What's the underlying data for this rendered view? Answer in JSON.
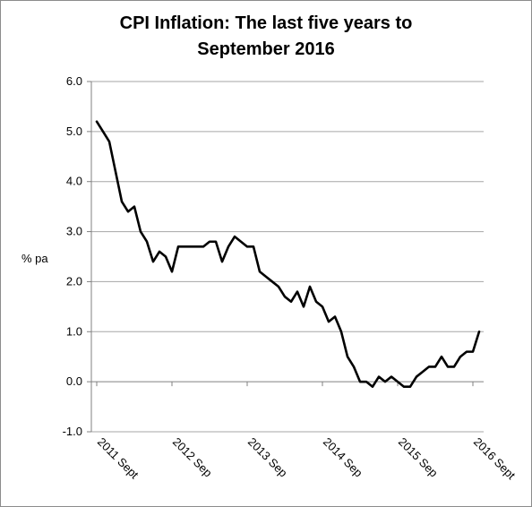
{
  "chart_data": {
    "type": "line",
    "title_lines": [
      "CPI Inflation: The last five years to",
      "September 2016"
    ],
    "ylabel": "% pa",
    "xlabel": "",
    "ylim": [
      -1.0,
      6.0
    ],
    "y_ticks": [
      "-1.0",
      "0.0",
      "1.0",
      "2.0",
      "3.0",
      "4.0",
      "5.0",
      "6.0"
    ],
    "y_tick_values": [
      -1,
      0,
      1,
      2,
      3,
      4,
      5,
      6
    ],
    "x_ticks": [
      "2011 Sept",
      "2012 Sep",
      "2013 Sep",
      "2014 Sep",
      "2015 Sep",
      "2016 Sept"
    ],
    "x_tick_months": [
      0,
      12,
      24,
      36,
      48,
      60
    ],
    "grid": true,
    "legend": "none",
    "colors": {
      "line": "#000000",
      "grid": "#a6a6a6",
      "axis": "#808080"
    },
    "series": [
      {
        "x_start": "2011 Sept",
        "values": [
          5.2,
          5.0,
          4.8,
          4.2,
          3.6,
          3.4,
          3.5,
          3.0,
          2.8,
          2.4,
          2.6,
          2.5,
          2.2,
          2.7,
          2.7,
          2.7,
          2.7,
          2.7,
          2.8,
          2.8,
          2.4,
          2.7,
          2.9,
          2.8,
          2.7,
          2.7,
          2.2,
          2.1,
          2.0,
          1.9,
          1.7,
          1.6,
          1.8,
          1.5,
          1.9,
          1.6,
          1.5,
          1.2,
          1.3,
          1.0,
          0.5,
          0.3,
          0.0,
          0.0,
          -0.1,
          0.1,
          0.0,
          0.1,
          0.0,
          -0.1,
          -0.1,
          0.1,
          0.2,
          0.3,
          0.3,
          0.5,
          0.3,
          0.3,
          0.5,
          0.6,
          0.6,
          1.0
        ]
      }
    ]
  }
}
